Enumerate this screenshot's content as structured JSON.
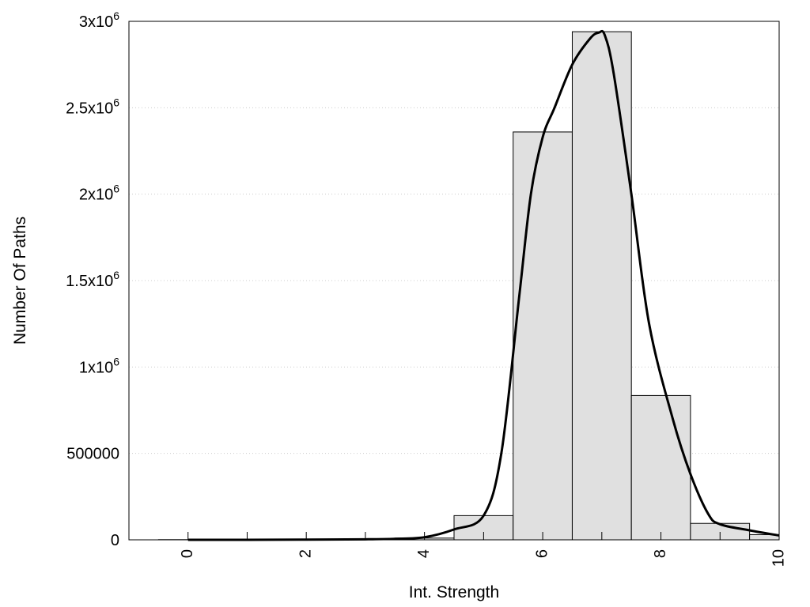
{
  "chart_data": {
    "type": "bar",
    "xlabel": "Int. Strength",
    "ylabel": "Number Of Paths",
    "xlim": [
      -1,
      10
    ],
    "ylim": [
      0,
      3000000
    ],
    "grid": "horizontal dotted",
    "colors": {
      "bar_fill": "#e0e0e0",
      "bar_stroke": "#000000",
      "curve": "#000000",
      "grid": "#cccccc"
    },
    "x_ticks": [
      {
        "value": 0,
        "label": "0"
      },
      {
        "value": 2,
        "label": "2"
      },
      {
        "value": 4,
        "label": "4"
      },
      {
        "value": 6,
        "label": "6"
      },
      {
        "value": 8,
        "label": "8"
      },
      {
        "value": 10,
        "label": "10"
      }
    ],
    "y_ticks": [
      {
        "value": 0,
        "label": "0",
        "exp": ""
      },
      {
        "value": 500000,
        "label": "500000",
        "exp": ""
      },
      {
        "value": 1000000,
        "label": "1x10",
        "exp": "6"
      },
      {
        "value": 1500000,
        "label": "1.5x10",
        "exp": "6"
      },
      {
        "value": 2000000,
        "label": "2x10",
        "exp": "6"
      },
      {
        "value": 2500000,
        "label": "2.5x10",
        "exp": "6"
      },
      {
        "value": 3000000,
        "label": "3x10",
        "exp": "6"
      }
    ],
    "categories": [
      0,
      1,
      2,
      3,
      4,
      5,
      6,
      7,
      8,
      9,
      10
    ],
    "values": [
      1000,
      1000,
      1000,
      2000,
      10000,
      140000,
      2360000,
      2940000,
      835000,
      95000,
      30000
    ],
    "series": [
      {
        "kind": "curve",
        "x": [
          0,
          1,
          2,
          3,
          3.5,
          4,
          4.5,
          5,
          5.3,
          5.6,
          5.8,
          6.0,
          6.2,
          6.5,
          6.8,
          6.95,
          7.05,
          7.2,
          7.5,
          7.8,
          8.2,
          8.5,
          8.8,
          9.0,
          9.5,
          10
        ],
        "y": [
          0,
          0,
          1000,
          3000,
          6000,
          15000,
          60000,
          140000,
          500000,
          1400000,
          2000000,
          2330000,
          2500000,
          2750000,
          2900000,
          2935000,
          2920000,
          2700000,
          2000000,
          1250000,
          700000,
          380000,
          150000,
          90000,
          55000,
          25000
        ]
      }
    ]
  }
}
